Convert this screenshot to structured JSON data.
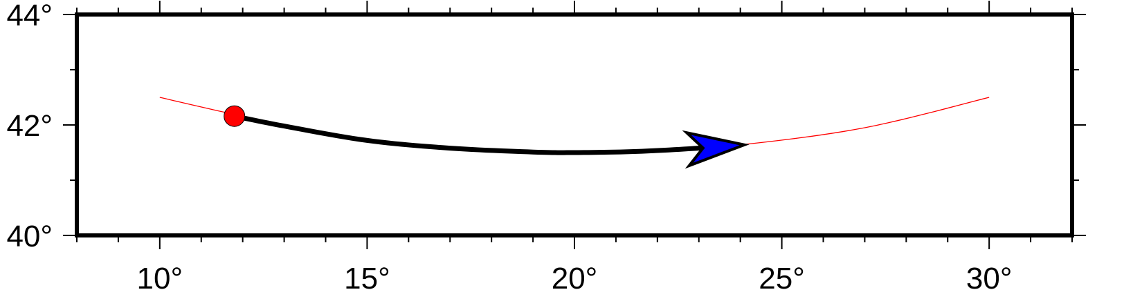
{
  "map": {
    "region": {
      "lon_min": 8,
      "lon_max": 32,
      "lat_min": 40,
      "lat_max": 44
    },
    "x_ticks": [
      {
        "lon": 10,
        "label": "10°"
      },
      {
        "lon": 15,
        "label": "15°"
      },
      {
        "lon": 20,
        "label": "20°"
      },
      {
        "lon": 25,
        "label": "25°"
      },
      {
        "lon": 30,
        "label": "30°"
      }
    ],
    "y_ticks": [
      {
        "lat": 40,
        "label": "40°"
      },
      {
        "lat": 42,
        "label": "42°"
      },
      {
        "lat": 44,
        "label": "44°"
      }
    ],
    "great_circle_path": {
      "color": "#ff0000",
      "points": [
        [
          10,
          42.5
        ],
        [
          12,
          42.16
        ],
        [
          15,
          41.72
        ],
        [
          18,
          41.53
        ],
        [
          20,
          41.5
        ],
        [
          22,
          41.54
        ],
        [
          24,
          41.64
        ],
        [
          27,
          41.95
        ],
        [
          30,
          42.5
        ]
      ]
    },
    "vector_arrow": {
      "color": "#000000",
      "head_color": "#0000ff",
      "points": [
        [
          11.8,
          42.16
        ],
        [
          13,
          41.98
        ],
        [
          15,
          41.72
        ],
        [
          17,
          41.58
        ],
        [
          19,
          41.51
        ],
        [
          20,
          41.5
        ],
        [
          21.5,
          41.52
        ],
        [
          23,
          41.58
        ],
        [
          24.1,
          41.64
        ]
      ]
    },
    "start_point": {
      "lon": 11.8,
      "lat": 42.16,
      "color": "#ff0000"
    }
  }
}
